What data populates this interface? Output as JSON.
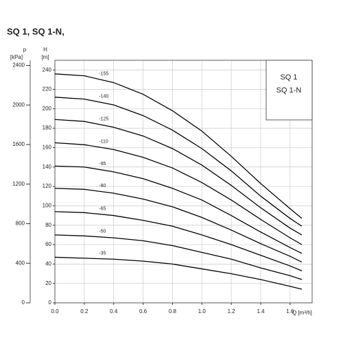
{
  "chart_data": {
    "type": "line",
    "title": "SQ 1, SQ 1-N,",
    "x_label": "Q [m³/h]",
    "y_label": "H",
    "y_unit": "[m]",
    "y2_label": "p",
    "y2_unit": "[kPa]",
    "box_texts": [
      "SQ 1",
      "SQ 1-N"
    ],
    "x": [
      0,
      0.2,
      0.4,
      0.6,
      0.8,
      1.0,
      1.2,
      1.4,
      1.6,
      1.68
    ],
    "xlim": [
      0,
      1.75
    ],
    "xticks": [
      {
        "value": 0,
        "label": "0.0"
      },
      0.2,
      0.4,
      0.6,
      0.8,
      {
        "value": 1,
        "label": "1.0"
      },
      1.2,
      1.4,
      1.6
    ],
    "ylim": [
      0,
      250
    ],
    "yticks": [
      0,
      20,
      40,
      60,
      80,
      100,
      120,
      140,
      160,
      180,
      200,
      220,
      240
    ],
    "y2lim": [
      0,
      2452
    ],
    "y2ticks": [
      0,
      400,
      800,
      1200,
      1600,
      2000,
      2400
    ],
    "grid": true,
    "series": [
      {
        "name": "-155",
        "color": "#000000",
        "values": [
          236,
          234,
          227,
          215,
          198,
          177,
          151,
          123,
          97,
          87
        ]
      },
      {
        "name": "-140",
        "color": "#000000",
        "values": [
          212,
          210,
          204,
          193,
          178,
          159,
          136,
          110,
          87,
          79
        ]
      },
      {
        "name": "-125",
        "color": "#000000",
        "values": [
          189,
          187,
          181,
          172,
          159,
          142,
          121,
          98,
          77,
          70
        ]
      },
      {
        "name": "-110",
        "color": "#000000",
        "values": [
          165,
          163,
          158,
          150,
          139,
          124,
          106,
          86,
          67,
          60
        ]
      },
      {
        "name": "-95",
        "color": "#000000",
        "values": [
          141,
          140,
          135,
          128,
          118,
          106,
          90,
          73,
          57,
          51
        ]
      },
      {
        "name": "-80",
        "color": "#000000",
        "values": [
          118,
          117,
          113,
          107,
          99,
          88,
          75,
          61,
          48,
          42
        ]
      },
      {
        "name": "-65",
        "color": "#000000",
        "values": [
          94,
          93,
          90,
          85,
          79,
          70,
          60,
          49,
          38,
          33
        ]
      },
      {
        "name": "-50",
        "color": "#000000",
        "values": [
          70,
          69,
          67,
          64,
          59,
          52,
          45,
          36,
          28,
          24
        ]
      },
      {
        "name": "-35",
        "color": "#000000",
        "values": [
          47,
          46,
          45,
          43,
          40,
          35,
          30,
          24,
          17,
          14
        ]
      }
    ]
  }
}
